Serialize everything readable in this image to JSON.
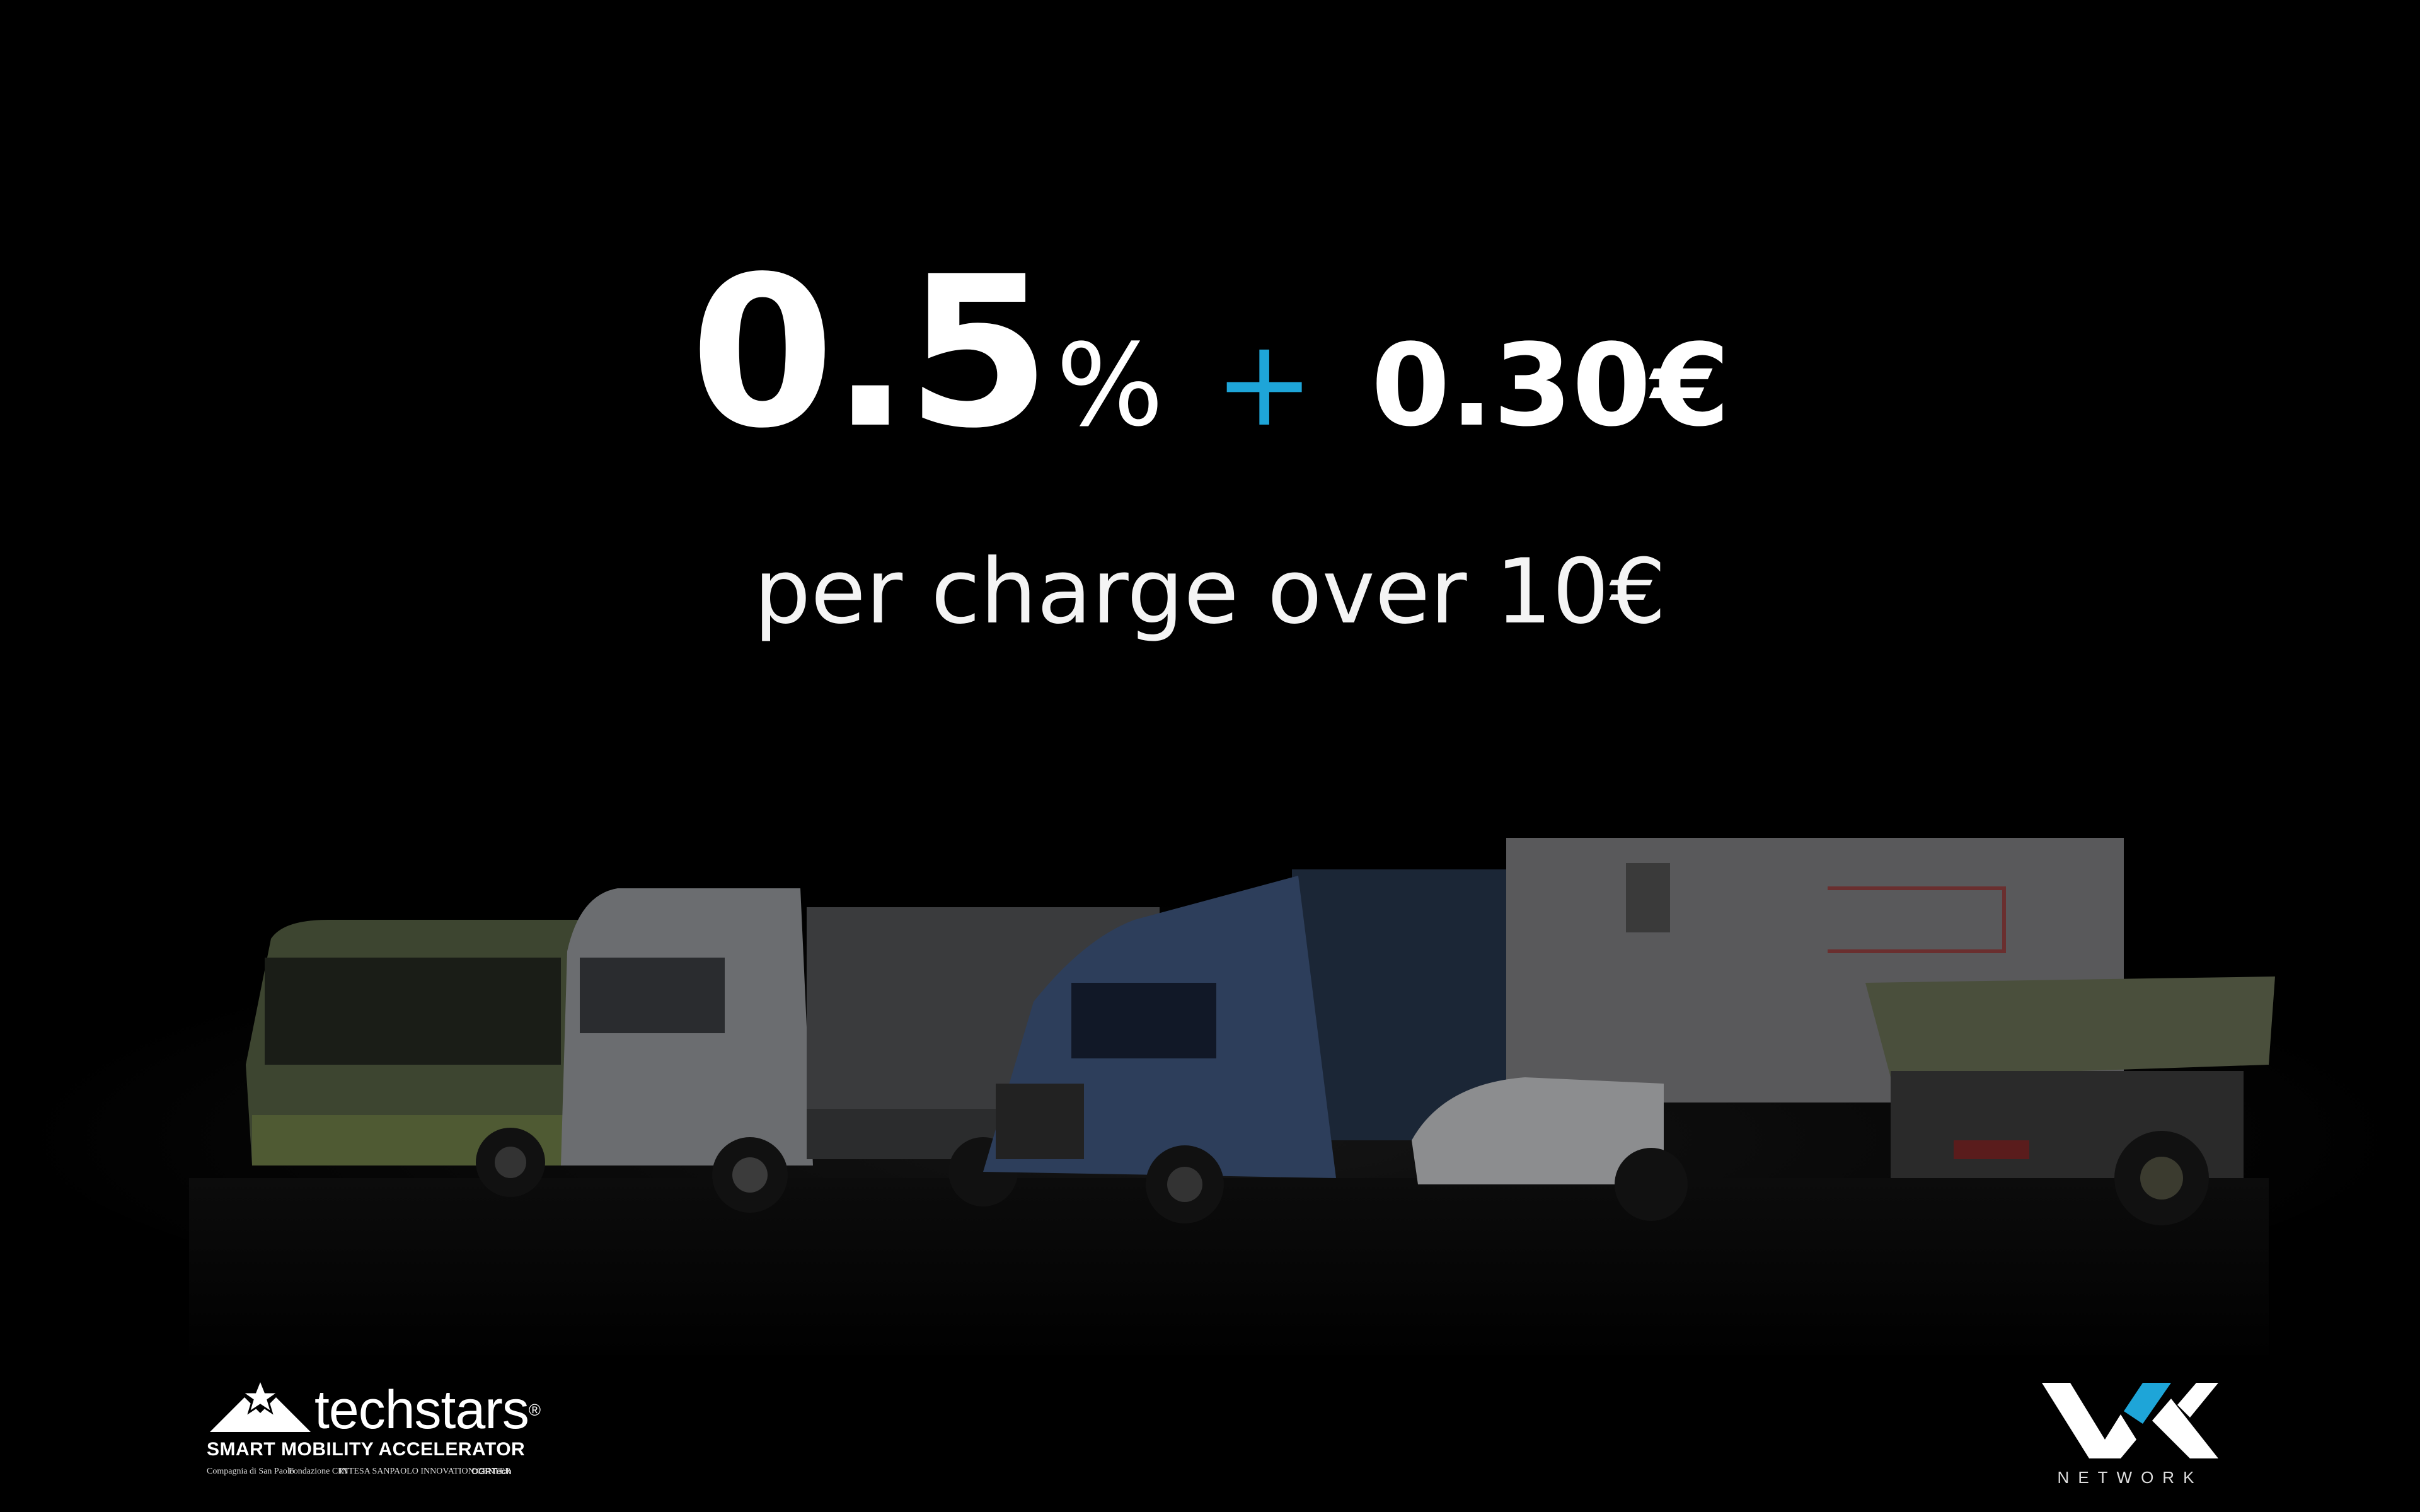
{
  "headline": {
    "percent_value": "0.5",
    "percent_sign": "%",
    "plus": "+",
    "fixed_fee": "0.30€"
  },
  "subline": "per charge over 10€",
  "colors": {
    "accent": "#1ea5d8",
    "background": "#000000",
    "text": "#ffffff"
  },
  "logos": {
    "techstars": {
      "name": "techstars",
      "registered": "®",
      "program": "SMART MOBILITY ACCELERATOR",
      "partners": [
        "Compagnia di San Paolo",
        "Fondazione CRT",
        "INTESA SANPAOLO INNOVATION CENTER",
        "OGRTech"
      ]
    },
    "vx": {
      "label": "NETWORK"
    }
  }
}
